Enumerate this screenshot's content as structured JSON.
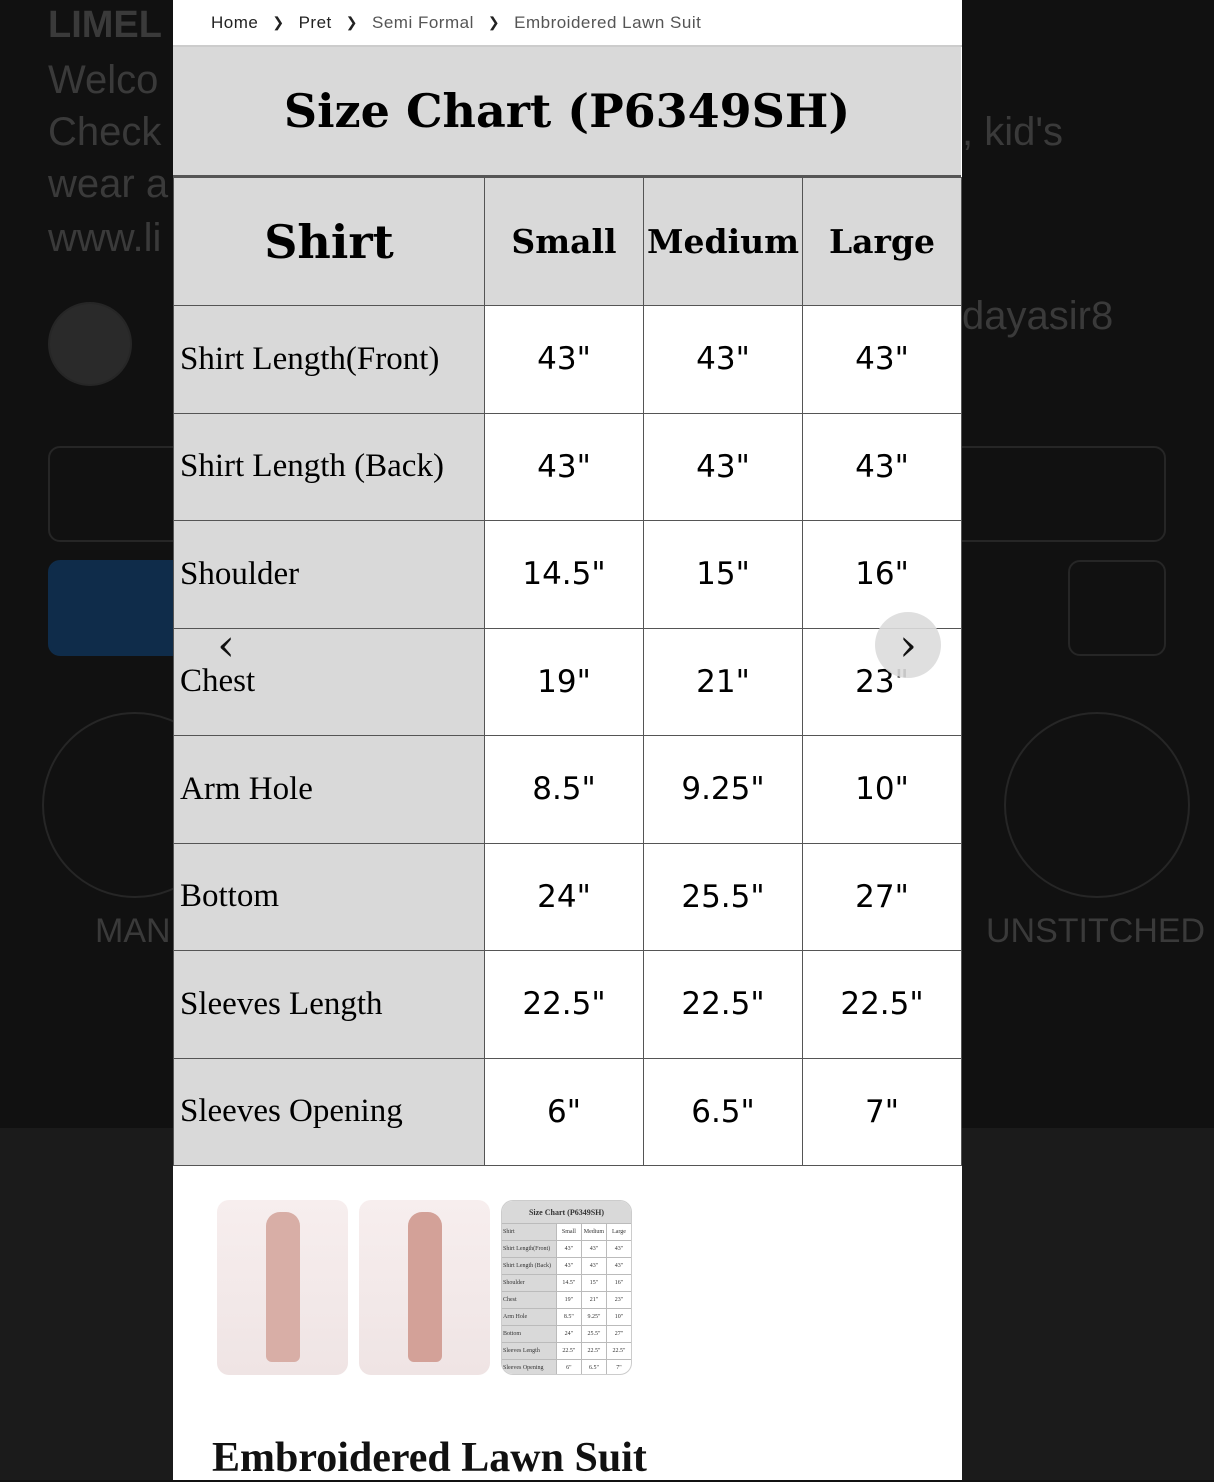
{
  "background": {
    "texts": [
      "LIMEL",
      "Welco",
      "Check",
      ", kid's",
      "wear a",
      "www.li",
      "dayasir8",
      "MAN",
      "UNSTITCHED"
    ]
  },
  "breadcrumb": [
    {
      "label": "Home"
    },
    {
      "label": "Pret"
    },
    {
      "label": "Semi Formal"
    },
    {
      "label": "Embroidered Lawn Suit"
    }
  ],
  "size_chart": {
    "title": "Size Chart (P6349SH)",
    "headers": [
      "Shirt",
      "Small",
      "Medium",
      "Large"
    ],
    "rows": [
      [
        "Shirt Length(Front)",
        "43\"",
        "43\"",
        "43\""
      ],
      [
        "Shirt Length (Back)",
        "43\"",
        "43\"",
        "43\""
      ],
      [
        "Shoulder",
        "14.5\"",
        "15\"",
        "16\""
      ],
      [
        "Chest",
        "19\"",
        "21\"",
        "23\""
      ],
      [
        "Arm Hole",
        "8.5\"",
        "9.25\"",
        "10\""
      ],
      [
        "Bottom",
        "24\"",
        "25.5\"",
        "27\""
      ],
      [
        "Sleeves Length",
        "22.5\"",
        "22.5\"",
        "22.5\""
      ],
      [
        "Sleeves Opening",
        "6\"",
        "6.5\"",
        "7\""
      ]
    ]
  },
  "carousel": {
    "prev_icon": "chevron-left-icon",
    "next_icon": "chevron-right-icon",
    "prev": "‹",
    "next": "›"
  },
  "thumbnails": [
    "front-view",
    "back-view",
    "size-chart"
  ],
  "product": {
    "title": "Embroidered Lawn Suit"
  }
}
